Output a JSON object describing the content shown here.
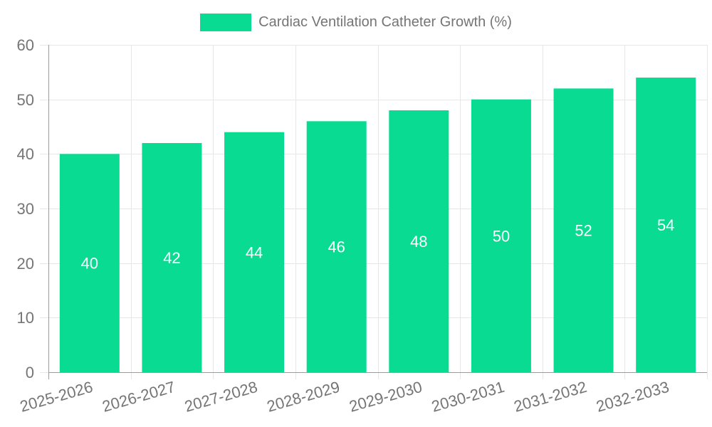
{
  "legend": {
    "label": "Cardiac Ventilation Catheter Growth (%)"
  },
  "chart_data": {
    "type": "bar",
    "title": "",
    "xlabel": "",
    "ylabel": "",
    "categories": [
      "2025-2026",
      "2026-2027",
      "2027-2028",
      "2028-2029",
      "2029-2030",
      "2030-2031",
      "2031-2032",
      "2032-2033"
    ],
    "values": [
      40,
      42,
      44,
      46,
      48,
      50,
      52,
      54
    ],
    "series_name": "Cardiac Ventilation Catheter Growth (%)",
    "ylim": [
      0,
      60
    ],
    "yticks": [
      0,
      10,
      20,
      30,
      40,
      50,
      60
    ],
    "grid": true,
    "legend_position": "top",
    "bar_color": "#0adb92",
    "bar_label_color": "#ffffff",
    "grid_color": "#e7e7e7",
    "axis_color": "#9c9c9c",
    "tick_label_color": "#757575",
    "x_label_rotation_deg": -16
  }
}
